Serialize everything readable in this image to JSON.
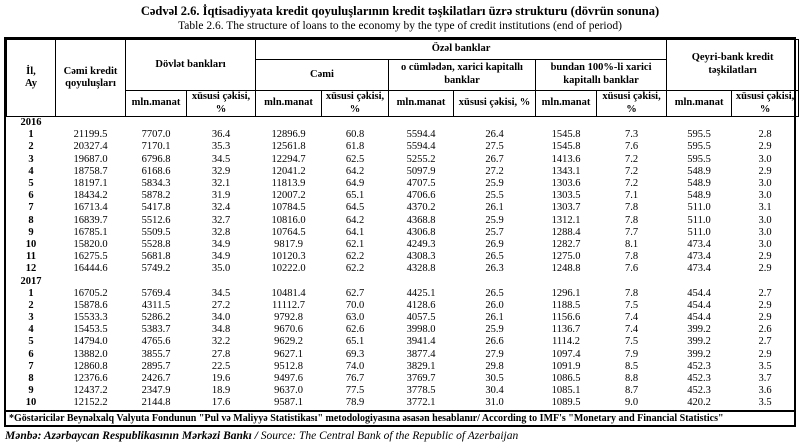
{
  "titles": {
    "az": "Cədvəl 2.6. İqtisadiyyata kredit qoyuluşlarının kredit təşkilatları üzrə strukturu (dövrün sonuna)",
    "en": "Table 2.6. The structure of loans to the economy by the type of credit institutions (end of period)"
  },
  "header": {
    "year_month": "İl,\nAy",
    "total_loans": "Cəmi kredit qoyuluşları",
    "state_banks": "Dövlət bankları",
    "private_banks": "Özəl banklar",
    "private_total": "Cəmi",
    "foreign_capital_banks": "o cümlədən, xarici kapitallı banklar",
    "foreign_100_banks": "bundan 100%-li xarici kapitallı banklar",
    "non_bank": "Qeyri-bank kredit təşkilatları",
    "unit_mln": "mln.manat",
    "unit_share": "xüsusi çəkisi, %"
  },
  "sections": [
    {
      "year": "2016",
      "rows": [
        [
          "1",
          "21199.5",
          "7707.0",
          "36.4",
          "12896.9",
          "60.8",
          "5594.4",
          "26.4",
          "1545.8",
          "7.3",
          "595.5",
          "2.8"
        ],
        [
          "2",
          "20327.4",
          "7170.1",
          "35.3",
          "12561.8",
          "61.8",
          "5594.4",
          "27.5",
          "1545.8",
          "7.6",
          "595.5",
          "2.9"
        ],
        [
          "3",
          "19687.0",
          "6796.8",
          "34.5",
          "12294.7",
          "62.5",
          "5255.2",
          "26.7",
          "1413.6",
          "7.2",
          "595.5",
          "3.0"
        ],
        [
          "4",
          "18758.7",
          "6168.6",
          "32.9",
          "12041.2",
          "64.2",
          "5097.9",
          "27.2",
          "1343.1",
          "7.2",
          "548.9",
          "2.9"
        ],
        [
          "5",
          "18197.1",
          "5834.3",
          "32.1",
          "11813.9",
          "64.9",
          "4707.5",
          "25.9",
          "1303.6",
          "7.2",
          "548.9",
          "3.0"
        ],
        [
          "6",
          "18434.2",
          "5878.2",
          "31.9",
          "12007.2",
          "65.1",
          "4706.6",
          "25.5",
          "1303.5",
          "7.1",
          "548.9",
          "3.0"
        ],
        [
          "7",
          "16713.4",
          "5417.8",
          "32.4",
          "10784.5",
          "64.5",
          "4370.2",
          "26.1",
          "1303.7",
          "7.8",
          "511.0",
          "3.1"
        ],
        [
          "8",
          "16839.7",
          "5512.6",
          "32.7",
          "10816.0",
          "64.2",
          "4368.8",
          "25.9",
          "1312.1",
          "7.8",
          "511.0",
          "3.0"
        ],
        [
          "9",
          "16785.1",
          "5509.5",
          "32.8",
          "10764.5",
          "64.1",
          "4306.8",
          "25.7",
          "1288.4",
          "7.7",
          "511.0",
          "3.0"
        ],
        [
          "10",
          "15820.0",
          "5528.8",
          "34.9",
          "9817.9",
          "62.1",
          "4249.3",
          "26.9",
          "1282.7",
          "8.1",
          "473.4",
          "3.0"
        ],
        [
          "11",
          "16275.5",
          "5681.8",
          "34.9",
          "10120.3",
          "62.2",
          "4308.3",
          "26.5",
          "1275.0",
          "7.8",
          "473.4",
          "2.9"
        ],
        [
          "12",
          "16444.6",
          "5749.2",
          "35.0",
          "10222.0",
          "62.2",
          "4328.8",
          "26.3",
          "1248.8",
          "7.6",
          "473.4",
          "2.9"
        ]
      ]
    },
    {
      "year": "2017",
      "rows": [
        [
          "1",
          "16705.2",
          "5769.4",
          "34.5",
          "10481.4",
          "62.7",
          "4425.1",
          "26.5",
          "1296.1",
          "7.8",
          "454.4",
          "2.7"
        ],
        [
          "2",
          "15878.6",
          "4311.5",
          "27.2",
          "11112.7",
          "70.0",
          "4128.6",
          "26.0",
          "1188.5",
          "7.5",
          "454.4",
          "2.9"
        ],
        [
          "3",
          "15533.3",
          "5286.2",
          "34.0",
          "9792.8",
          "63.0",
          "4057.5",
          "26.1",
          "1156.6",
          "7.4",
          "454.4",
          "2.9"
        ],
        [
          "4",
          "15453.5",
          "5383.7",
          "34.8",
          "9670.6",
          "62.6",
          "3998.0",
          "25.9",
          "1136.7",
          "7.4",
          "399.2",
          "2.6"
        ],
        [
          "5",
          "14794.0",
          "4765.6",
          "32.2",
          "9629.2",
          "65.1",
          "3941.4",
          "26.6",
          "1114.2",
          "7.5",
          "399.2",
          "2.7"
        ],
        [
          "6",
          "13882.0",
          "3855.7",
          "27.8",
          "9627.1",
          "69.3",
          "3877.4",
          "27.9",
          "1097.4",
          "7.9",
          "399.2",
          "2.9"
        ],
        [
          "7",
          "12860.8",
          "2895.7",
          "22.5",
          "9512.8",
          "74.0",
          "3829.1",
          "29.8",
          "1091.9",
          "8.5",
          "452.3",
          "3.5"
        ],
        [
          "8",
          "12376.6",
          "2426.7",
          "19.6",
          "9497.6",
          "76.7",
          "3769.7",
          "30.5",
          "1086.5",
          "8.8",
          "452.3",
          "3.7"
        ],
        [
          "9",
          "12437.2",
          "2347.9",
          "18.9",
          "9637.0",
          "77.5",
          "3778.5",
          "30.4",
          "1085.1",
          "8.7",
          "452.3",
          "3.6"
        ],
        [
          "10",
          "12152.2",
          "2144.8",
          "17.6",
          "9587.1",
          "78.9",
          "3772.1",
          "31.0",
          "1089.5",
          "9.0",
          "420.2",
          "3.5"
        ]
      ]
    }
  ],
  "footnote": "*Göstəricilər Beynəlxalq Valyuta Fondunun \"Pul və Maliyyə Statistikası\" metodologiyasına əsasən hesablanır/ According to IMF's \"Monetary and Financial Statistics\"",
  "source": {
    "az": "Mənbə: Azərbaycan Respublikasının Mərkəzi Bankı /",
    "en": " Source: The Central Bank of the Republic of Azerbaijan"
  }
}
